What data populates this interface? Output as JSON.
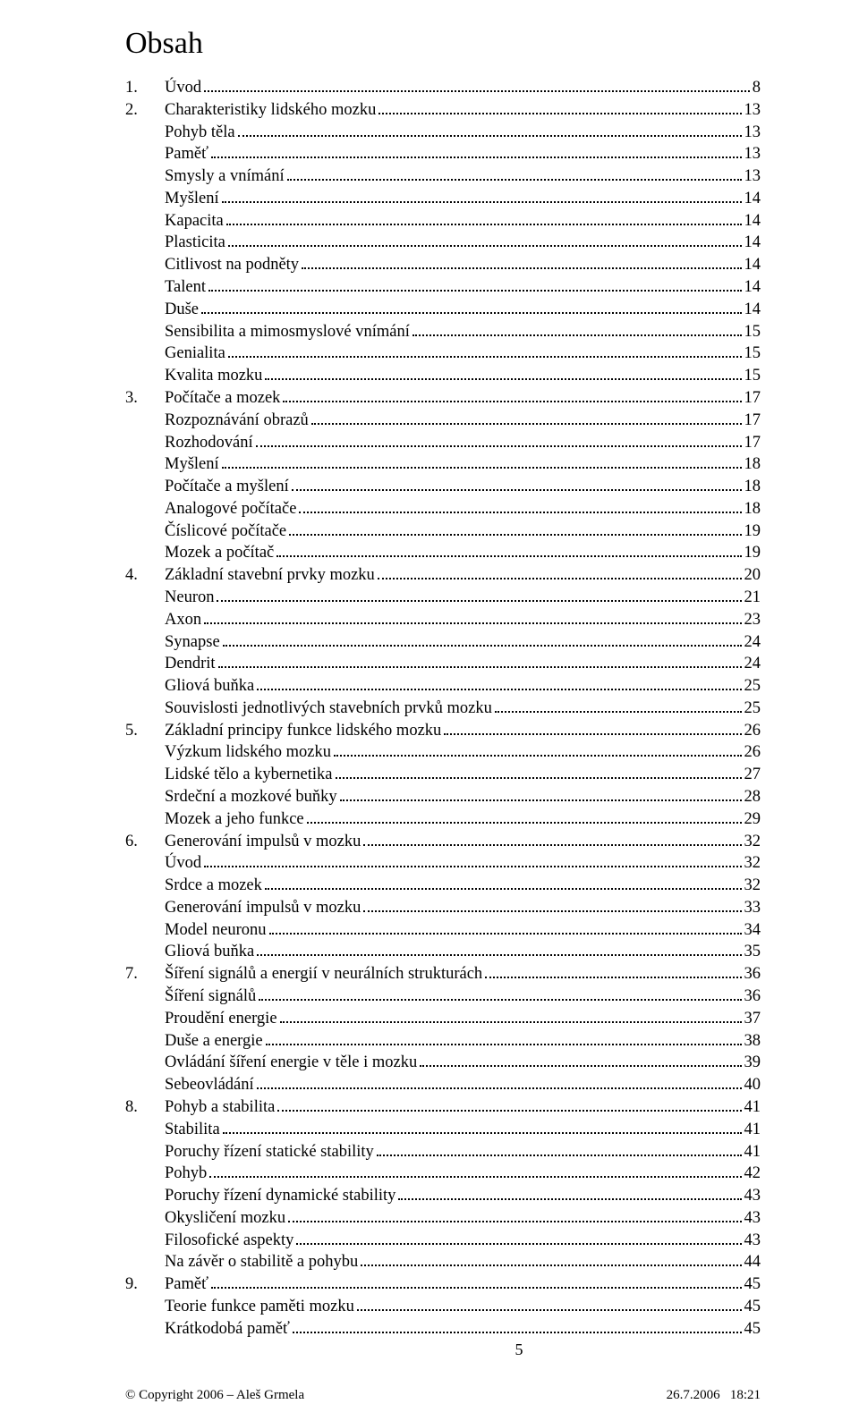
{
  "title": "Obsah",
  "toc": [
    {
      "type": "chapter",
      "num": "1.",
      "label": "Úvod",
      "page": "8"
    },
    {
      "type": "chapter",
      "num": "2.",
      "label": "Charakteristiky lidského mozku",
      "page": "13"
    },
    {
      "type": "sub",
      "label": "Pohyb těla",
      "page": "13"
    },
    {
      "type": "sub",
      "label": "Paměť",
      "page": "13"
    },
    {
      "type": "sub",
      "label": "Smysly a vnímání",
      "page": "13"
    },
    {
      "type": "sub",
      "label": "Myšlení",
      "page": "14"
    },
    {
      "type": "sub",
      "label": "Kapacita",
      "page": "14"
    },
    {
      "type": "sub",
      "label": "Plasticita",
      "page": "14"
    },
    {
      "type": "sub",
      "label": "Citlivost na podněty",
      "page": "14"
    },
    {
      "type": "sub",
      "label": "Talent",
      "page": "14"
    },
    {
      "type": "sub",
      "label": "Duše",
      "page": "14"
    },
    {
      "type": "sub",
      "label": "Sensibilita a mimosmyslové vnímání",
      "page": "15"
    },
    {
      "type": "sub",
      "label": "Genialita",
      "page": "15"
    },
    {
      "type": "sub",
      "label": "Kvalita mozku",
      "page": "15"
    },
    {
      "type": "chapter",
      "num": "3.",
      "label": "Počítače a mozek",
      "page": "17"
    },
    {
      "type": "sub",
      "label": "Rozpoznávání obrazů",
      "page": "17"
    },
    {
      "type": "sub",
      "label": "Rozhodování",
      "page": "17"
    },
    {
      "type": "sub",
      "label": "Myšlení",
      "page": "18"
    },
    {
      "type": "sub",
      "label": "Počítače a myšlení",
      "page": "18"
    },
    {
      "type": "sub",
      "label": "Analogové počítače",
      "page": "18"
    },
    {
      "type": "sub",
      "label": "Číslicové počítače",
      "page": "19"
    },
    {
      "type": "sub",
      "label": "Mozek a počítač",
      "page": "19"
    },
    {
      "type": "chapter",
      "num": "4.",
      "label": "Základní stavební prvky mozku",
      "page": "20"
    },
    {
      "type": "sub",
      "label": "Neuron",
      "page": "21"
    },
    {
      "type": "sub",
      "label": "Axon",
      "page": "23"
    },
    {
      "type": "sub",
      "label": "Synapse",
      "page": "24"
    },
    {
      "type": "sub",
      "label": "Dendrit",
      "page": "24"
    },
    {
      "type": "sub",
      "label": "Gliová buňka",
      "page": "25"
    },
    {
      "type": "sub",
      "label": "Souvislosti jednotlivých stavebních prvků mozku",
      "page": "25"
    },
    {
      "type": "chapter",
      "num": "5.",
      "label": "Základní principy funkce lidského mozku",
      "page": "26"
    },
    {
      "type": "sub",
      "label": "Výzkum lidského mozku",
      "page": "26"
    },
    {
      "type": "sub",
      "label": "Lidské tělo a kybernetika",
      "page": "27"
    },
    {
      "type": "sub",
      "label": "Srdeční a mozkové buňky",
      "page": "28"
    },
    {
      "type": "sub",
      "label": "Mozek a jeho funkce",
      "page": "29"
    },
    {
      "type": "chapter",
      "num": "6.",
      "label": "Generování impulsů v mozku",
      "page": "32"
    },
    {
      "type": "sub",
      "label": "Úvod",
      "page": "32"
    },
    {
      "type": "sub",
      "label": "Srdce a mozek",
      "page": "32"
    },
    {
      "type": "sub",
      "label": "Generování impulsů v mozku",
      "page": "33"
    },
    {
      "type": "sub",
      "label": "Model neuronu",
      "page": "34"
    },
    {
      "type": "sub",
      "label": "Gliová buňka",
      "page": "35"
    },
    {
      "type": "chapter",
      "num": "7.",
      "label": "Šíření signálů a energií v neurálních strukturách",
      "page": "36"
    },
    {
      "type": "sub",
      "label": "Šíření signálů",
      "page": "36"
    },
    {
      "type": "sub",
      "label": "Proudění energie",
      "page": "37"
    },
    {
      "type": "sub",
      "label": "Duše a energie",
      "page": "38"
    },
    {
      "type": "sub",
      "label": "Ovládání šíření energie v těle i mozku",
      "page": "39"
    },
    {
      "type": "sub",
      "label": "Sebeovládání",
      "page": "40"
    },
    {
      "type": "chapter",
      "num": "8.",
      "label": "Pohyb a stabilita",
      "page": "41"
    },
    {
      "type": "sub",
      "label": "Stabilita",
      "page": "41"
    },
    {
      "type": "sub",
      "label": "Poruchy řízení statické stability",
      "page": "41"
    },
    {
      "type": "sub",
      "label": "Pohyb",
      "page": "42"
    },
    {
      "type": "sub",
      "label": "Poruchy řízení dynamické stability",
      "page": "43"
    },
    {
      "type": "sub",
      "label": "Okysličení mozku",
      "page": "43"
    },
    {
      "type": "sub",
      "label": "Filosofické aspekty",
      "page": "43"
    },
    {
      "type": "sub",
      "label": "Na závěr o stabilitě a pohybu",
      "page": "44"
    },
    {
      "type": "chapter",
      "num": "9.",
      "label": "Paměť",
      "page": "45"
    },
    {
      "type": "sub",
      "label": "Teorie funkce paměti mozku",
      "page": "45"
    },
    {
      "type": "sub",
      "label": "Krátkodobá paměť",
      "page": "45"
    }
  ],
  "footer": {
    "page_number": "5",
    "copyright": "© Copyright 2006 – Aleš Grmela",
    "date": "26.7.2006",
    "time": "18:21"
  }
}
